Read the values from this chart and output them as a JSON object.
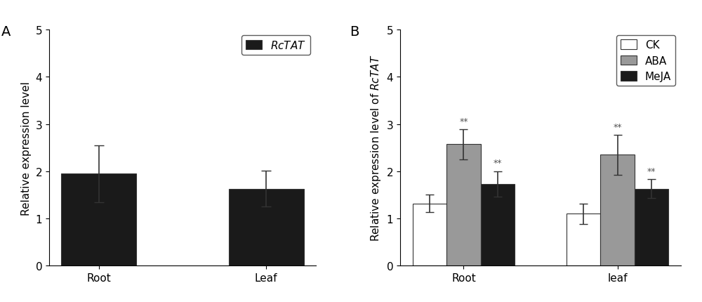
{
  "panel_A": {
    "categories": [
      "Root",
      "Leaf"
    ],
    "values": [
      1.95,
      1.63
    ],
    "errors": [
      0.6,
      0.38
    ],
    "bar_color": "#1a1a1a",
    "ylabel": "Relative expression level",
    "ylim": [
      0,
      5
    ],
    "yticks": [
      0,
      1,
      2,
      3,
      4,
      5
    ],
    "legend_label": "RcTAT",
    "panel_label": "A"
  },
  "panel_B": {
    "categories": [
      "Root",
      "leaf"
    ],
    "groups": [
      "CK",
      "ABA",
      "MeJA"
    ],
    "values": [
      [
        1.32,
        2.57,
        1.73
      ],
      [
        1.1,
        2.35,
        1.63
      ]
    ],
    "errors": [
      [
        0.18,
        0.32,
        0.27
      ],
      [
        0.22,
        0.42,
        0.2
      ]
    ],
    "bar_colors": [
      "#ffffff",
      "#999999",
      "#1a1a1a"
    ],
    "bar_edge_color": "#333333",
    "ylabel": "Relative expression level of RcTAT",
    "ylim": [
      0,
      5
    ],
    "yticks": [
      0,
      1,
      2,
      3,
      4,
      5
    ],
    "significance": [
      [
        false,
        true,
        true
      ],
      [
        false,
        true,
        true
      ]
    ],
    "panel_label": "B"
  },
  "background_color": "#ffffff",
  "font_size": 11,
  "title_font_size": 14
}
